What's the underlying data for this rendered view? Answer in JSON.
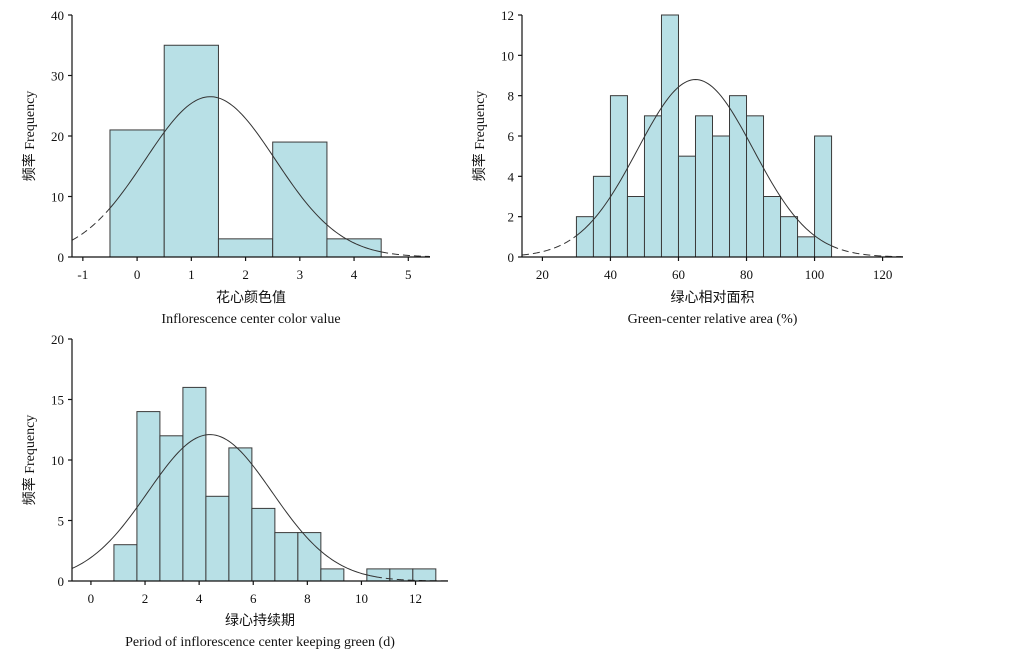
{
  "chart_data": [
    {
      "type": "bar",
      "subtype": "histogram",
      "ylabel": "频率 Frequency",
      "xlabel_cn": "花心颜色值",
      "xlabel_en": "Inflorescence center color value",
      "xlim": [
        -1.2,
        5.4
      ],
      "ylim": [
        0,
        40
      ],
      "xticks": [
        -1,
        0,
        1,
        2,
        3,
        4,
        5
      ],
      "yticks": [
        0,
        10,
        20,
        30,
        40
      ],
      "bins": [
        {
          "start": -0.5,
          "end": 0.5,
          "value": 21
        },
        {
          "start": 0.5,
          "end": 1.5,
          "value": 35
        },
        {
          "start": 1.5,
          "end": 2.5,
          "value": 3
        },
        {
          "start": 2.5,
          "end": 3.5,
          "value": 19
        },
        {
          "start": 3.5,
          "end": 4.5,
          "value": 3
        }
      ],
      "normal_curve": {
        "mean": 1.35,
        "sd": 1.2,
        "peak": 26.5,
        "solid_range": [
          -0.5,
          4.5
        ]
      },
      "grid": false
    },
    {
      "type": "bar",
      "subtype": "histogram",
      "ylabel": "频率 Frequency",
      "xlabel_cn": "绿心相对面积",
      "xlabel_en": "Green-center relative area (%)",
      "xlim": [
        14,
        126
      ],
      "ylim": [
        0,
        12
      ],
      "xticks": [
        20,
        40,
        60,
        80,
        100,
        120
      ],
      "yticks": [
        0,
        2,
        4,
        6,
        8,
        10,
        12
      ],
      "bins": [
        {
          "start": 30,
          "end": 35,
          "value": 2
        },
        {
          "start": 35,
          "end": 40,
          "value": 4
        },
        {
          "start": 40,
          "end": 45,
          "value": 8
        },
        {
          "start": 45,
          "end": 50,
          "value": 3
        },
        {
          "start": 50,
          "end": 55,
          "value": 7
        },
        {
          "start": 55,
          "end": 60,
          "value": 12
        },
        {
          "start": 60,
          "end": 65,
          "value": 5
        },
        {
          "start": 65,
          "end": 70,
          "value": 7
        },
        {
          "start": 70,
          "end": 75,
          "value": 6
        },
        {
          "start": 75,
          "end": 80,
          "value": 8
        },
        {
          "start": 80,
          "end": 85,
          "value": 7
        },
        {
          "start": 85,
          "end": 90,
          "value": 3
        },
        {
          "start": 90,
          "end": 95,
          "value": 2
        },
        {
          "start": 95,
          "end": 100,
          "value": 1
        },
        {
          "start": 100,
          "end": 105,
          "value": 6
        }
      ],
      "normal_curve": {
        "mean": 65,
        "sd": 17,
        "peak": 8.8,
        "solid_range": [
          30,
          105
        ]
      },
      "grid": false
    },
    {
      "type": "bar",
      "subtype": "histogram",
      "ylabel": "频率 Frequency",
      "xlabel_cn": "绿心持续期",
      "xlabel_en": "Period of inflorescence center keeping green (d)",
      "xlim": [
        -0.7,
        13.2
      ],
      "ylim": [
        0,
        20
      ],
      "xticks": [
        0,
        2,
        4,
        6,
        8,
        10,
        12
      ],
      "yticks": [
        0,
        5,
        10,
        15,
        20
      ],
      "bins": [
        {
          "start": 0.85,
          "end": 1.7,
          "value": 3
        },
        {
          "start": 1.7,
          "end": 2.55,
          "value": 14
        },
        {
          "start": 2.55,
          "end": 3.4,
          "value": 12
        },
        {
          "start": 3.4,
          "end": 4.25,
          "value": 16
        },
        {
          "start": 4.25,
          "end": 5.1,
          "value": 7
        },
        {
          "start": 5.1,
          "end": 5.95,
          "value": 11
        },
        {
          "start": 5.95,
          "end": 6.8,
          "value": 6
        },
        {
          "start": 6.8,
          "end": 7.65,
          "value": 4
        },
        {
          "start": 7.65,
          "end": 8.5,
          "value": 4
        },
        {
          "start": 8.5,
          "end": 9.35,
          "value": 1
        },
        {
          "start": 10.2,
          "end": 11.05,
          "value": 1
        },
        {
          "start": 11.05,
          "end": 11.9,
          "value": 1
        },
        {
          "start": 11.9,
          "end": 12.75,
          "value": 1
        }
      ],
      "normal_curve": {
        "mean": 4.4,
        "sd": 2.3,
        "peak": 12.1,
        "solid_range": [
          -0.7,
          10.5
        ]
      },
      "grid": false
    }
  ]
}
